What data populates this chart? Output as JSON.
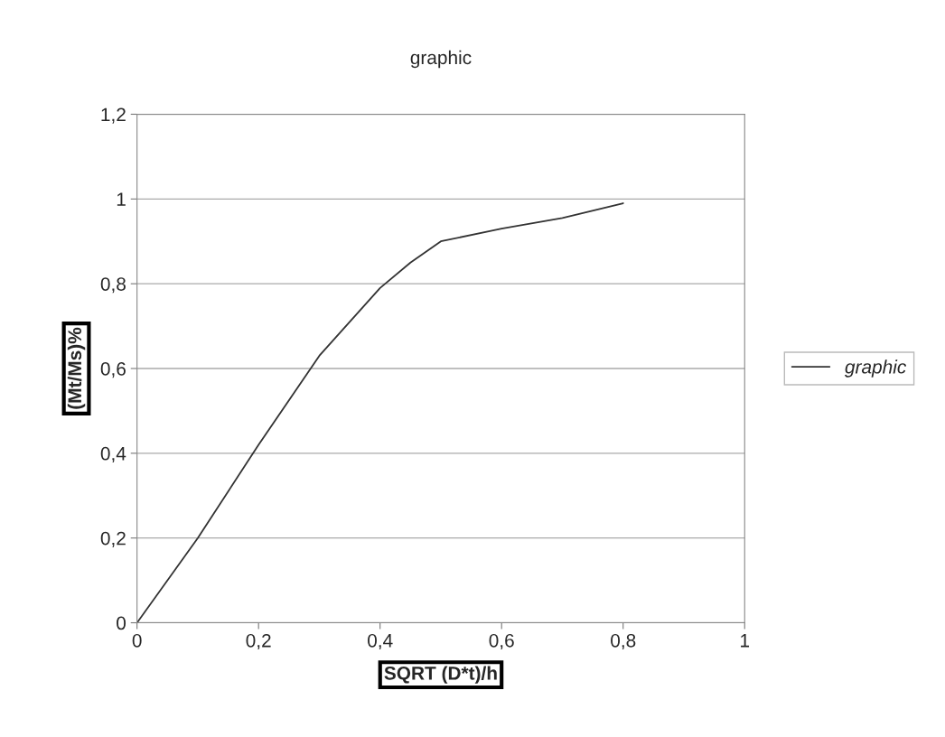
{
  "chart_data": {
    "type": "line",
    "title": "graphic",
    "xlabel": "SQRT (D*t)/h",
    "ylabel": "(Mt/Ms)%",
    "x": [
      0,
      0.1,
      0.2,
      0.3,
      0.4,
      0.45,
      0.5,
      0.6,
      0.7,
      0.8
    ],
    "series": [
      {
        "name": "graphic",
        "color": "#333333",
        "values": [
          0,
          0.2,
          0.42,
          0.63,
          0.79,
          0.85,
          0.9,
          0.93,
          0.955,
          0.99
        ]
      }
    ],
    "xlim": [
      0,
      1
    ],
    "xticks": [
      {
        "value": 0,
        "label": "0"
      },
      {
        "value": 0.2,
        "label": "0,2"
      },
      {
        "value": 0.4,
        "label": "0,4"
      },
      {
        "value": 0.6,
        "label": "0,6"
      },
      {
        "value": 0.8,
        "label": "0,8"
      },
      {
        "value": 1,
        "label": "1"
      }
    ],
    "ylim": [
      0,
      1.2
    ],
    "yticks": [
      {
        "value": 0,
        "label": "0"
      },
      {
        "value": 0.2,
        "label": "0,2"
      },
      {
        "value": 0.4,
        "label": "0,4"
      },
      {
        "value": 0.6,
        "label": "0,6"
      },
      {
        "value": 0.8,
        "label": "0,8"
      },
      {
        "value": 1,
        "label": "1"
      },
      {
        "value": 1.2,
        "label": "1,2"
      }
    ],
    "grid": "y",
    "legend": "right",
    "marker": "none",
    "line_style": "solid"
  }
}
